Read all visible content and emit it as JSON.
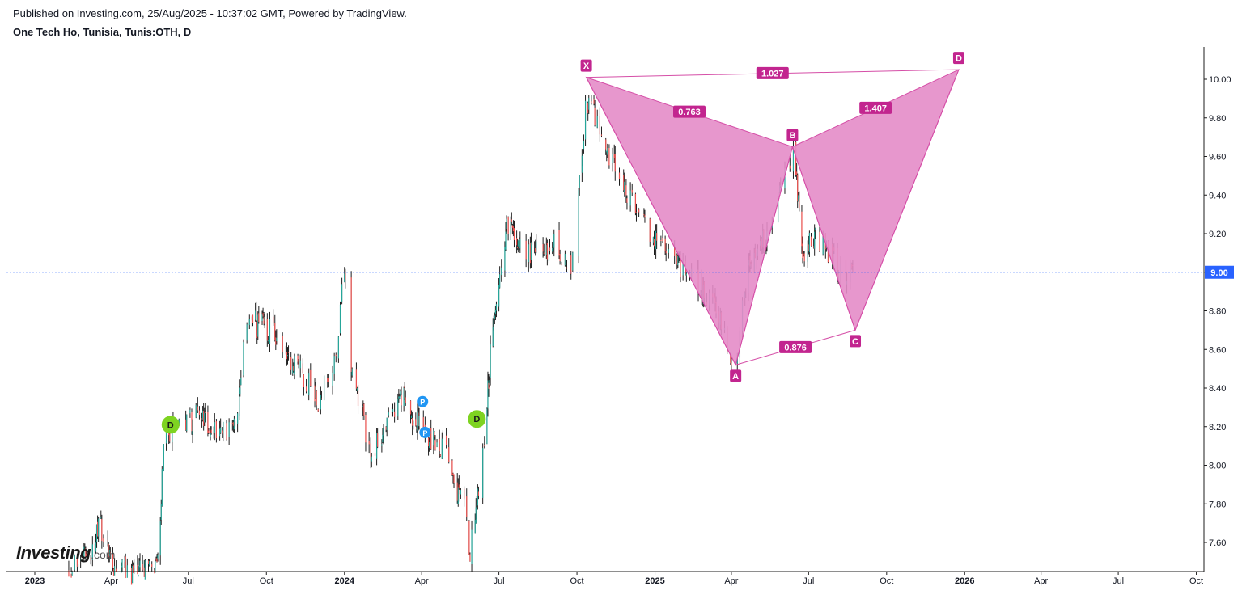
{
  "header": {
    "published": "Published on Investing.com, 25/Aug/2025 - 10:37:02 GMT, Powered by TradingView.",
    "title": "One Tech Ho, Tunisia, Tunis:OTH, D"
  },
  "watermark": {
    "brand": "Investing",
    "suffix": ".com"
  },
  "chart_data": {
    "type": "candlestick",
    "y_range": [
      7.45,
      10.15
    ],
    "y_ticks": [
      7.6,
      7.8,
      8.0,
      8.2,
      8.4,
      8.6,
      8.8,
      9.0,
      9.2,
      9.4,
      9.6,
      9.8,
      10.0
    ],
    "y_tick_labels": [
      "7.60",
      "7.80",
      "8.00",
      "8.20",
      "8.40",
      "8.60",
      "8.80",
      "9.00",
      "9.20",
      "9.40",
      "9.60",
      "9.80",
      "10.00"
    ],
    "x_range": [
      "2023-01-01",
      "2026-10-10"
    ],
    "x_ticks": [
      {
        "date": "2023-01-01",
        "label": "2023",
        "bold": true
      },
      {
        "date": "2023-04-01",
        "label": "Apr",
        "bold": false
      },
      {
        "date": "2023-07-01",
        "label": "Jul",
        "bold": false
      },
      {
        "date": "2023-10-01",
        "label": "Oct",
        "bold": false
      },
      {
        "date": "2024-01-01",
        "label": "2024",
        "bold": true
      },
      {
        "date": "2024-04-01",
        "label": "Apr",
        "bold": false
      },
      {
        "date": "2024-07-01",
        "label": "Jul",
        "bold": false
      },
      {
        "date": "2024-10-01",
        "label": "Oct",
        "bold": false
      },
      {
        "date": "2025-01-01",
        "label": "2025",
        "bold": true
      },
      {
        "date": "2025-04-01",
        "label": "Apr",
        "bold": false
      },
      {
        "date": "2025-07-01",
        "label": "Jul",
        "bold": false
      },
      {
        "date": "2025-10-01",
        "label": "Oct",
        "bold": false
      },
      {
        "date": "2026-01-01",
        "label": "2026",
        "bold": true
      },
      {
        "date": "2026-04-01",
        "label": "Apr",
        "bold": false
      },
      {
        "date": "2026-07-01",
        "label": "Jul",
        "bold": false
      },
      {
        "date": "2026-10-01",
        "label": "Oct",
        "bold": false
      }
    ],
    "price_path": [
      [
        "2023-02-10",
        7.45
      ],
      [
        "2023-03-05",
        7.55
      ],
      [
        "2023-03-20",
        7.68
      ],
      [
        "2023-04-05",
        7.45
      ],
      [
        "2023-05-10",
        7.45
      ],
      [
        "2023-05-28",
        7.5
      ],
      [
        "2023-06-01",
        8.1
      ],
      [
        "2023-06-12",
        8.22
      ],
      [
        "2023-07-10",
        8.25
      ],
      [
        "2023-08-10",
        8.18
      ],
      [
        "2023-08-28",
        8.25
      ],
      [
        "2023-09-08",
        8.75
      ],
      [
        "2023-10-05",
        8.7
      ],
      [
        "2023-11-01",
        8.55
      ],
      [
        "2023-12-01",
        8.35
      ],
      [
        "2023-12-20",
        8.5
      ],
      [
        "2024-01-01",
        9.0
      ],
      [
        "2024-01-06",
        8.6
      ],
      [
        "2024-02-01",
        8.05
      ],
      [
        "2024-02-20",
        8.2
      ],
      [
        "2024-03-10",
        8.35
      ],
      [
        "2024-04-05",
        8.15
      ],
      [
        "2024-04-25",
        8.1
      ],
      [
        "2024-05-20",
        7.8
      ],
      [
        "2024-05-28",
        7.55
      ],
      [
        "2024-06-15",
        8.2
      ],
      [
        "2024-06-25",
        8.8
      ],
      [
        "2024-07-10",
        9.25
      ],
      [
        "2024-08-01",
        9.1
      ],
      [
        "2024-09-05",
        9.15
      ],
      [
        "2024-09-25",
        9.0
      ],
      [
        "2024-10-05",
        9.5
      ],
      [
        "2024-10-12",
        9.9
      ],
      [
        "2024-11-05",
        9.65
      ],
      [
        "2024-12-10",
        9.3
      ],
      [
        "2025-01-10",
        9.1
      ],
      [
        "2025-02-10",
        9.0
      ],
      [
        "2025-03-10",
        8.85
      ],
      [
        "2025-04-05",
        8.52
      ],
      [
        "2025-04-20",
        9.0
      ],
      [
        "2025-05-15",
        9.2
      ],
      [
        "2025-06-05",
        9.5
      ],
      [
        "2025-06-12",
        9.65
      ],
      [
        "2025-06-25",
        9.1
      ],
      [
        "2025-07-10",
        9.2
      ],
      [
        "2025-08-01",
        9.05
      ],
      [
        "2025-08-20",
        9.0
      ],
      [
        "2025-08-25",
        8.95
      ]
    ],
    "last_price": 9.0,
    "last_price_label": "9.00",
    "pattern": {
      "points": [
        {
          "name": "X",
          "date": "2024-10-12",
          "price": 10.01
        },
        {
          "name": "A",
          "date": "2025-04-06",
          "price": 8.52
        },
        {
          "name": "B",
          "date": "2025-06-12",
          "price": 9.65
        },
        {
          "name": "C",
          "date": "2025-08-25",
          "price": 8.7
        },
        {
          "name": "D",
          "date": "2025-12-25",
          "price": 10.05
        }
      ],
      "ratios": [
        {
          "label": "0.763",
          "from": "X",
          "to": "B"
        },
        {
          "label": "0.876",
          "from": "A",
          "to": "C"
        },
        {
          "label": "1.407",
          "from": "B",
          "to": "D"
        },
        {
          "label": "1.027",
          "from": "X",
          "to": "D"
        }
      ],
      "color": "#d54ea7",
      "fill": "#e48cc8"
    },
    "markers": [
      {
        "label": "D",
        "date": "2023-06-10",
        "price": 8.21,
        "kind": "dividend",
        "color": "#7ed321"
      },
      {
        "label": "D",
        "date": "2024-06-05",
        "price": 8.24,
        "kind": "dividend",
        "color": "#7ed321"
      },
      {
        "label": "P",
        "date": "2024-04-02",
        "price": 8.33,
        "kind": "event",
        "color": "#2196f3"
      },
      {
        "label": "P",
        "date": "2024-04-05",
        "price": 8.17,
        "kind": "event",
        "color": "#2196f3"
      }
    ],
    "colors": {
      "up": "#26a69a",
      "down": "#ef5350",
      "wick": "#1e1e1e",
      "price_line": "#2962ff"
    }
  }
}
